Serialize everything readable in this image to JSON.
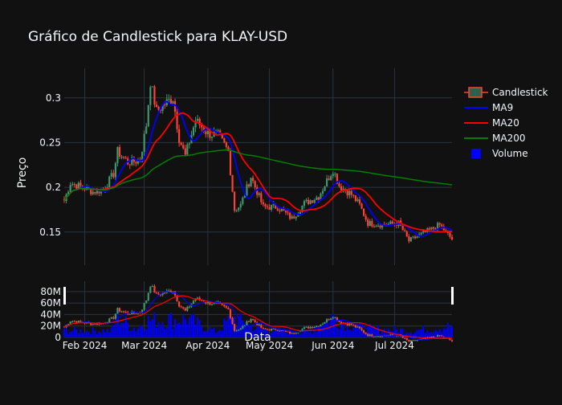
{
  "chart_data": {
    "type": "candlestick",
    "title": "Gráfico de Candlestick para KLAY-USD",
    "xlabel": "Data",
    "ylabel": "Preço",
    "x_start": "2024-01-22",
    "x_end": "2024-07-29",
    "ylim": [
      0.113,
      0.333
    ],
    "yticks": [
      0.15,
      0.2,
      0.25,
      0.3
    ],
    "yticks_labels": [
      "0.15",
      "0.2",
      "0.25",
      "0.3"
    ],
    "xticks": [
      "2024-02-01",
      "2024-03-01",
      "2024-04-01",
      "2024-05-01",
      "2024-06-01",
      "2024-07-01"
    ],
    "xticks_labels": [
      "Feb 2024",
      "Mar 2024",
      "Apr 2024",
      "May 2024",
      "Jun 2024",
      "Jul 2024"
    ],
    "volume_ylim": [
      0,
      98000000
    ],
    "volume_ticks": [
      0,
      20000000,
      40000000,
      60000000,
      80000000
    ],
    "volume_ticks_labels": [
      "0",
      "20M",
      "40M",
      "60M",
      "80M"
    ],
    "legend": [
      "Candlestick",
      "MA9",
      "MA20",
      "MA200",
      "Volume"
    ],
    "legend_placement": "top-right",
    "grid": true,
    "colors": {
      "increasing": "#3d9970",
      "decreasing": "#ff4136",
      "ma9": "#0000ff",
      "ma20": "#ff0000",
      "ma200": "#008000",
      "volume": "#0000ff",
      "background": "#111111",
      "grid": "#283442"
    },
    "close_anchors": [
      [
        "2024-01-22",
        0.185
      ],
      [
        "2024-01-25",
        0.205
      ],
      [
        "2024-01-31",
        0.2
      ],
      [
        "2024-02-05",
        0.195
      ],
      [
        "2024-02-10",
        0.197
      ],
      [
        "2024-02-15",
        0.215
      ],
      [
        "2024-02-17",
        0.24
      ],
      [
        "2024-02-22",
        0.228
      ],
      [
        "2024-02-28",
        0.23
      ],
      [
        "2024-03-02",
        0.27
      ],
      [
        "2024-03-04",
        0.318
      ],
      [
        "2024-03-07",
        0.285
      ],
      [
        "2024-03-12",
        0.295
      ],
      [
        "2024-03-15",
        0.3
      ],
      [
        "2024-03-18",
        0.255
      ],
      [
        "2024-03-21",
        0.235
      ],
      [
        "2024-03-26",
        0.275
      ],
      [
        "2024-04-01",
        0.26
      ],
      [
        "2024-04-06",
        0.258
      ],
      [
        "2024-04-11",
        0.24
      ],
      [
        "2024-04-14",
        0.175
      ],
      [
        "2024-04-17",
        0.18
      ],
      [
        "2024-04-22",
        0.212
      ],
      [
        "2024-04-28",
        0.178
      ],
      [
        "2024-05-05",
        0.178
      ],
      [
        "2024-05-12",
        0.165
      ],
      [
        "2024-05-18",
        0.182
      ],
      [
        "2024-05-25",
        0.19
      ],
      [
        "2024-06-01",
        0.22
      ],
      [
        "2024-06-04",
        0.202
      ],
      [
        "2024-06-10",
        0.192
      ],
      [
        "2024-06-14",
        0.18
      ],
      [
        "2024-06-18",
        0.16
      ],
      [
        "2024-06-25",
        0.158
      ],
      [
        "2024-07-03",
        0.16
      ],
      [
        "2024-07-08",
        0.14
      ],
      [
        "2024-07-12",
        0.145
      ],
      [
        "2024-07-18",
        0.152
      ],
      [
        "2024-07-23",
        0.158
      ],
      [
        "2024-07-29",
        0.142
      ]
    ],
    "volume_anchors": [
      [
        "2024-01-22",
        12000000
      ],
      [
        "2024-02-14",
        12000000
      ],
      [
        "2024-02-17",
        35000000
      ],
      [
        "2024-02-26",
        15000000
      ],
      [
        "2024-03-02",
        30000000
      ],
      [
        "2024-03-22",
        32000000
      ],
      [
        "2024-04-05",
        10000000
      ],
      [
        "2024-04-13",
        35000000
      ],
      [
        "2024-04-25",
        15000000
      ],
      [
        "2024-05-20",
        8000000
      ],
      [
        "2024-06-01",
        35000000
      ],
      [
        "2024-06-15",
        16000000
      ],
      [
        "2024-07-10",
        12000000
      ],
      [
        "2024-07-29",
        20000000
      ]
    ]
  }
}
